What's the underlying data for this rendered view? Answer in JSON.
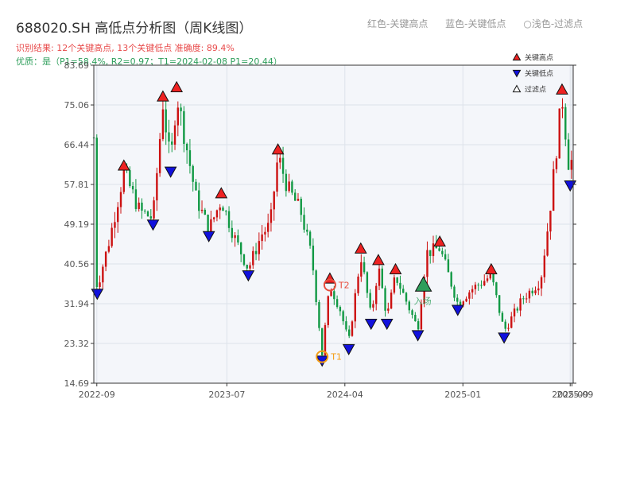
{
  "title": "688020.SH 高低点分析图（周K线图）",
  "legend_top": {
    "red": "红色-关键高点",
    "blue": "蓝色-关键低点",
    "light": "○浅色-过滤点"
  },
  "subtitle": "识别结果: 12个关键高点, 13个关键低点  准确度: 89.4%",
  "quality": "优质：是（P1=58.4%, R2=0.97；T1=2024-02-08 P1=20.44）",
  "colors": {
    "up": "#cc1111",
    "down": "#119944",
    "high": "#ee2222",
    "low": "#1111dd",
    "t_marker": "#f39c12",
    "entry": "#2e9e5b"
  },
  "chart_data": {
    "type": "candlestick",
    "title": "688020.SH 高低点分析图（周K线图）",
    "ylim": [
      14.69,
      83.69
    ],
    "y_ticks": [
      "14.69",
      "23.32",
      "31.94",
      "40.56",
      "49.19",
      "57.81",
      "66.44",
      "75.06",
      "83.69"
    ],
    "xlim": [
      "2022-08-25",
      "2025-09-15"
    ],
    "x_ticks": [
      {
        "date": "2022-09-01",
        "label": "2022-09"
      },
      {
        "date": "2023-07-01",
        "label": "2023-07"
      },
      {
        "date": "2024-04-01",
        "label": "2024-04"
      },
      {
        "date": "2025-01-01",
        "label": "2025-01"
      },
      {
        "date": "2025-09-08",
        "label": "2025-09"
      },
      {
        "date": "2025-09-12",
        "label": "2025-09"
      }
    ],
    "legend": [
      "关键高点",
      "关键低点",
      "过滤点"
    ],
    "price_path": [
      [
        "2022-08-26",
        40.5
      ],
      [
        "2022-09-02",
        35.5
      ],
      [
        "2022-10-01",
        46
      ],
      [
        "2022-11-03",
        60.5
      ],
      [
        "2022-12-10",
        52
      ],
      [
        "2023-01-10",
        50.5
      ],
      [
        "2023-02-02",
        75.5
      ],
      [
        "2023-02-20",
        62
      ],
      [
        "2023-03-06",
        77.5
      ],
      [
        "2023-04-20",
        55
      ],
      [
        "2023-05-20",
        48
      ],
      [
        "2023-06-18",
        54.5
      ],
      [
        "2023-07-20",
        46
      ],
      [
        "2023-08-20",
        39.5
      ],
      [
        "2023-09-20",
        47
      ],
      [
        "2023-10-10",
        49
      ],
      [
        "2023-10-28",
        64
      ],
      [
        "2023-11-20",
        57
      ],
      [
        "2023-12-20",
        52
      ],
      [
        "2024-01-15",
        42
      ],
      [
        "2024-02-08",
        21
      ],
      [
        "2024-02-26",
        36
      ],
      [
        "2024-03-20",
        31
      ],
      [
        "2024-04-10",
        23.5
      ],
      [
        "2024-05-08",
        42.5
      ],
      [
        "2024-06-01",
        29
      ],
      [
        "2024-06-18",
        40
      ],
      [
        "2024-07-08",
        29
      ],
      [
        "2024-07-28",
        38
      ],
      [
        "2024-09-18",
        26.5
      ],
      [
        "2024-10-08",
        43
      ],
      [
        "2024-11-08",
        44
      ],
      [
        "2024-12-20",
        32
      ],
      [
        "2025-01-20",
        35
      ],
      [
        "2025-03-08",
        38
      ],
      [
        "2025-04-07",
        26
      ],
      [
        "2025-05-20",
        33
      ],
      [
        "2025-07-01",
        37
      ],
      [
        "2025-07-20",
        50
      ],
      [
        "2025-08-20",
        77
      ],
      [
        "2025-09-08",
        59
      ],
      [
        "2025-09-15",
        68
      ]
    ],
    "key_highs": [
      {
        "date": "2022-11-03",
        "value": 60.5
      },
      {
        "date": "2023-02-02",
        "value": 75.5
      },
      {
        "date": "2023-03-06",
        "value": 77.5
      },
      {
        "date": "2023-06-18",
        "value": 54.5
      },
      {
        "date": "2023-10-28",
        "value": 64
      },
      {
        "date": "2024-05-08",
        "value": 42.5
      },
      {
        "date": "2024-06-18",
        "value": 40
      },
      {
        "date": "2024-07-28",
        "value": 38
      },
      {
        "date": "2024-11-08",
        "value": 44
      },
      {
        "date": "2025-03-08",
        "value": 38
      },
      {
        "date": "2025-08-20",
        "value": 77
      },
      {
        "date": "2024-02-26",
        "value": 36
      }
    ],
    "key_lows": [
      {
        "date": "2022-09-02",
        "value": 35.5
      },
      {
        "date": "2023-01-10",
        "value": 50.5
      },
      {
        "date": "2023-02-20",
        "value": 62
      },
      {
        "date": "2023-05-20",
        "value": 48
      },
      {
        "date": "2023-08-20",
        "value": 39.5
      },
      {
        "date": "2024-02-08",
        "value": 21
      },
      {
        "date": "2024-04-10",
        "value": 23.5
      },
      {
        "date": "2024-06-01",
        "value": 29
      },
      {
        "date": "2024-07-08",
        "value": 29
      },
      {
        "date": "2024-09-18",
        "value": 26.5
      },
      {
        "date": "2024-12-20",
        "value": 32
      },
      {
        "date": "2025-04-07",
        "value": 26
      },
      {
        "date": "2025-09-08",
        "value": 59
      }
    ],
    "annotations": [
      {
        "label": "T1",
        "date": "2024-02-08",
        "value": 20.44
      },
      {
        "label": "T2",
        "date": "2024-02-26",
        "value": 36
      },
      {
        "label": "入场",
        "date": "2024-10-01",
        "value": 35
      }
    ]
  }
}
